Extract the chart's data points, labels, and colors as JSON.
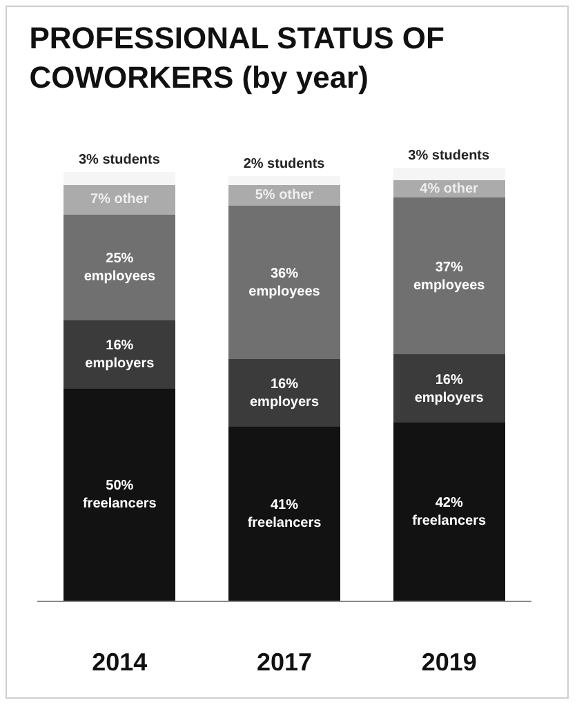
{
  "chart_data": {
    "type": "bar",
    "title": "PROFESSIONAL STATUS OF COWORKERS (by year)",
    "categories": [
      "2014",
      "2017",
      "2019"
    ],
    "stacked": true,
    "legend": false,
    "series": [
      {
        "name": "freelancers",
        "color": "#121212",
        "values": [
          50,
          41,
          42
        ],
        "value_labels": [
          "50%",
          "41%",
          "42%"
        ]
      },
      {
        "name": "employers",
        "color": "#3b3b3b",
        "values": [
          16,
          16,
          16
        ],
        "value_labels": [
          "16%",
          "16%",
          "16%"
        ]
      },
      {
        "name": "employees",
        "color": "#707070",
        "values": [
          25,
          36,
          37
        ],
        "value_labels": [
          "25%",
          "36%",
          "37%"
        ]
      },
      {
        "name": "other",
        "color": "#ababab",
        "values": [
          7,
          5,
          4
        ],
        "value_labels": [
          "7%",
          "5%",
          "4%"
        ]
      },
      {
        "name": "students",
        "color": "#f5f5f5",
        "values": [
          3,
          2,
          3
        ],
        "value_labels": [
          "3%",
          "2%",
          "3%"
        ]
      }
    ]
  }
}
